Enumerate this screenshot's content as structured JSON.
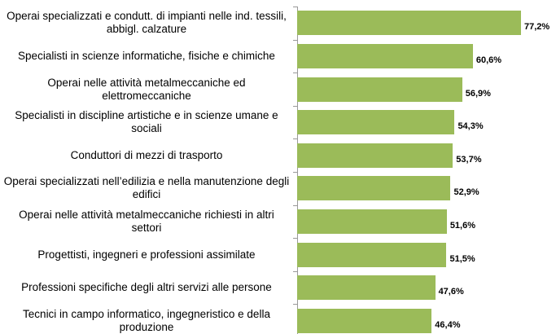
{
  "chart_data": {
    "type": "bar",
    "orientation": "horizontal",
    "categories": [
      "Operai specializzati e condutt. di impianti nelle ind. tessili, abbigl. calzature",
      "Specialisti in scienze informatiche, fisiche e chimiche",
      "Operai nelle attività metalmeccaniche ed elettromeccaniche",
      "Specialisti in discipline artistiche e in scienze umane e sociali",
      "Conduttori di mezzi di trasporto",
      "Operai specializzati nell’edilizia e nella manutenzione degli edifici",
      "Operai nelle attività metalmeccaniche richiesti in altri settori",
      "Progettisti, ingegneri e professioni assimilate",
      "Professioni specifiche degli altri servizi alle persone",
      "Tecnici in campo informatico, ingegneristico e della produzione"
    ],
    "values": [
      77.2,
      60.6,
      56.9,
      54.3,
      53.7,
      52.9,
      51.6,
      51.5,
      47.6,
      46.4
    ],
    "value_labels": [
      "77,2%",
      "60,6%",
      "56,9%",
      "54,3%",
      "53,7%",
      "52,9%",
      "51,6%",
      "51,5%",
      "47,6%",
      "46,4%"
    ],
    "color": "#9bbb59",
    "xlim": [
      0,
      80
    ]
  }
}
